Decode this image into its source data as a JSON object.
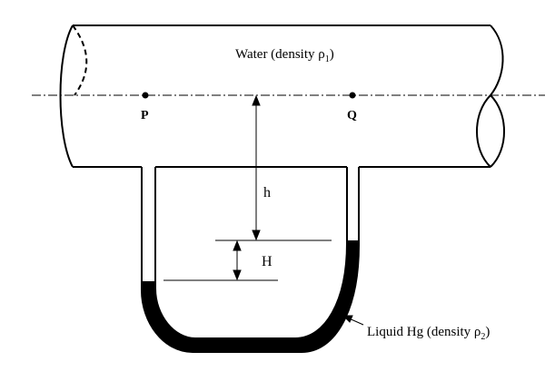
{
  "diagram": {
    "fluid_label": {
      "text": "Water (density ",
      "symbol": "ρ",
      "subscript": "1",
      "close": ")"
    },
    "mercury_label": {
      "text": "Liquid Hg (density ",
      "symbol": "ρ",
      "subscript": "2",
      "close": ")"
    },
    "points": [
      {
        "id": "P",
        "label": "P"
      },
      {
        "id": "Q",
        "label": "Q"
      }
    ],
    "dimensions": {
      "h": "h",
      "H": "H"
    },
    "colors": {
      "stroke": "#000000",
      "mercury": "#000000",
      "background": "#ffffff"
    }
  }
}
